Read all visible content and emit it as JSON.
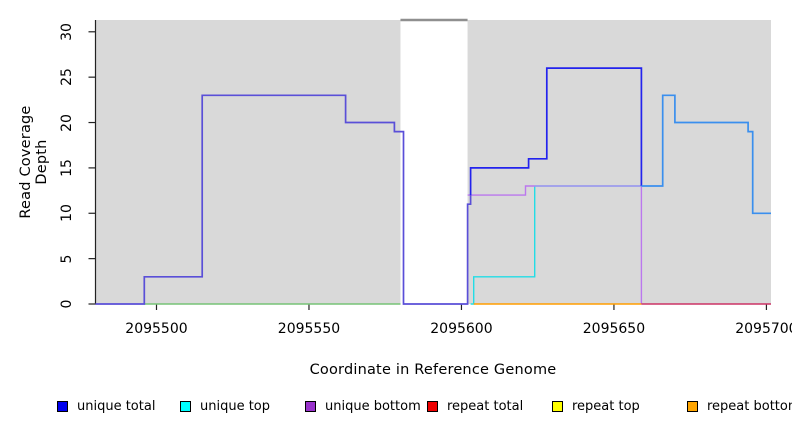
{
  "chart_data": {
    "type": "line",
    "subtype": "step-coverage-plot",
    "title": "",
    "xlabel": "Coordinate in Reference Genome",
    "ylabel": "Read Coverage Depth",
    "xlim": [
      2095480,
      2095701.5
    ],
    "ylim": [
      0,
      31.3
    ],
    "x_ticks": [
      2095500,
      2095550,
      2095600,
      2095650,
      2095700
    ],
    "y_ticks": [
      0,
      5,
      10,
      15,
      20,
      25,
      30
    ],
    "grid": false,
    "legend_position": "bottom",
    "plot_bg": "#ffffff",
    "region_color": "#d9d9d9",
    "background_regions": [
      {
        "name": "covered-region-left",
        "x0": 2095480,
        "x1": 2095580
      },
      {
        "name": "covered-region-right",
        "x0": 2095602,
        "x1": 2095701.5
      }
    ],
    "gap_marker": {
      "x0": 2095580,
      "x1": 2095602,
      "y": 31.3,
      "color": "#8f8f8f"
    },
    "series": [
      {
        "name": "unique-top",
        "color": "#22dde6",
        "width": 1.4,
        "points": [
          [
            2095603,
            0
          ],
          [
            2095604,
            0
          ],
          [
            2095604,
            3
          ],
          [
            2095624,
            3
          ],
          [
            2095624,
            13
          ]
        ]
      },
      {
        "name": "unique-bottom",
        "color": "#bb77ee",
        "width": 1.4,
        "points": [
          [
            2095602,
            12
          ],
          [
            2095621,
            12
          ],
          [
            2095621,
            13
          ],
          [
            2095659,
            13
          ],
          [
            2095659,
            0
          ]
        ]
      },
      {
        "name": "unique-top-bottom-overlap",
        "color": "#98a2ec",
        "width": 1.4,
        "points": [
          [
            2095624,
            13
          ],
          [
            2095659,
            13
          ]
        ]
      },
      {
        "name": "unique-top-repeat-top-overlap",
        "color": "#77c377",
        "width": 1.4,
        "points": [
          [
            2095496,
            0
          ],
          [
            2095580,
            0
          ]
        ]
      },
      {
        "name": "repeat-bottom",
        "color": "#ff9d00",
        "width": 1.5,
        "points": [
          [
            2095604,
            0
          ],
          [
            2095659,
            0
          ]
        ]
      },
      {
        "name": "repeat-overlap",
        "color": "#cc3366",
        "width": 1.5,
        "points": [
          [
            2095659,
            0
          ],
          [
            2095701.5,
            0
          ]
        ]
      },
      {
        "name": "unique-total-left",
        "color": "#5a4fd8",
        "width": 1.7,
        "points": [
          [
            2095480,
            0
          ],
          [
            2095496,
            0
          ],
          [
            2095496,
            3
          ],
          [
            2095515,
            3
          ],
          [
            2095515,
            23
          ],
          [
            2095562,
            23
          ],
          [
            2095562,
            20
          ],
          [
            2095578,
            20
          ],
          [
            2095578,
            19
          ],
          [
            2095581,
            19
          ],
          [
            2095581,
            0
          ],
          [
            2095602,
            0
          ],
          [
            2095602,
            11
          ],
          [
            2095603,
            11
          ],
          [
            2095603,
            12
          ]
        ]
      },
      {
        "name": "unique-total-mid",
        "color": "#2323ee",
        "width": 1.7,
        "points": [
          [
            2095603,
            12
          ],
          [
            2095603,
            15
          ],
          [
            2095622,
            15
          ],
          [
            2095622,
            16
          ],
          [
            2095628,
            16
          ],
          [
            2095628,
            26
          ],
          [
            2095659,
            26
          ],
          [
            2095659,
            13
          ]
        ]
      },
      {
        "name": "unique-total-right",
        "color": "#3a8fee",
        "width": 1.7,
        "points": [
          [
            2095659,
            13
          ],
          [
            2095666,
            13
          ],
          [
            2095666,
            23
          ],
          [
            2095670,
            23
          ],
          [
            2095670,
            20
          ],
          [
            2095694,
            20
          ],
          [
            2095694,
            19
          ],
          [
            2095695.5,
            19
          ],
          [
            2095695.5,
            10
          ],
          [
            2095701.5,
            10
          ]
        ]
      }
    ],
    "legend": [
      {
        "label": "unique total",
        "color": "#0000ee"
      },
      {
        "label": "unique top",
        "color": "#00ffff"
      },
      {
        "label": "unique bottom",
        "color": "#9932cc"
      },
      {
        "label": "repeat total",
        "color": "#ee0000"
      },
      {
        "label": "repeat top",
        "color": "#ffff00"
      },
      {
        "label": "repeat bottom",
        "color": "#ffa500"
      }
    ]
  }
}
